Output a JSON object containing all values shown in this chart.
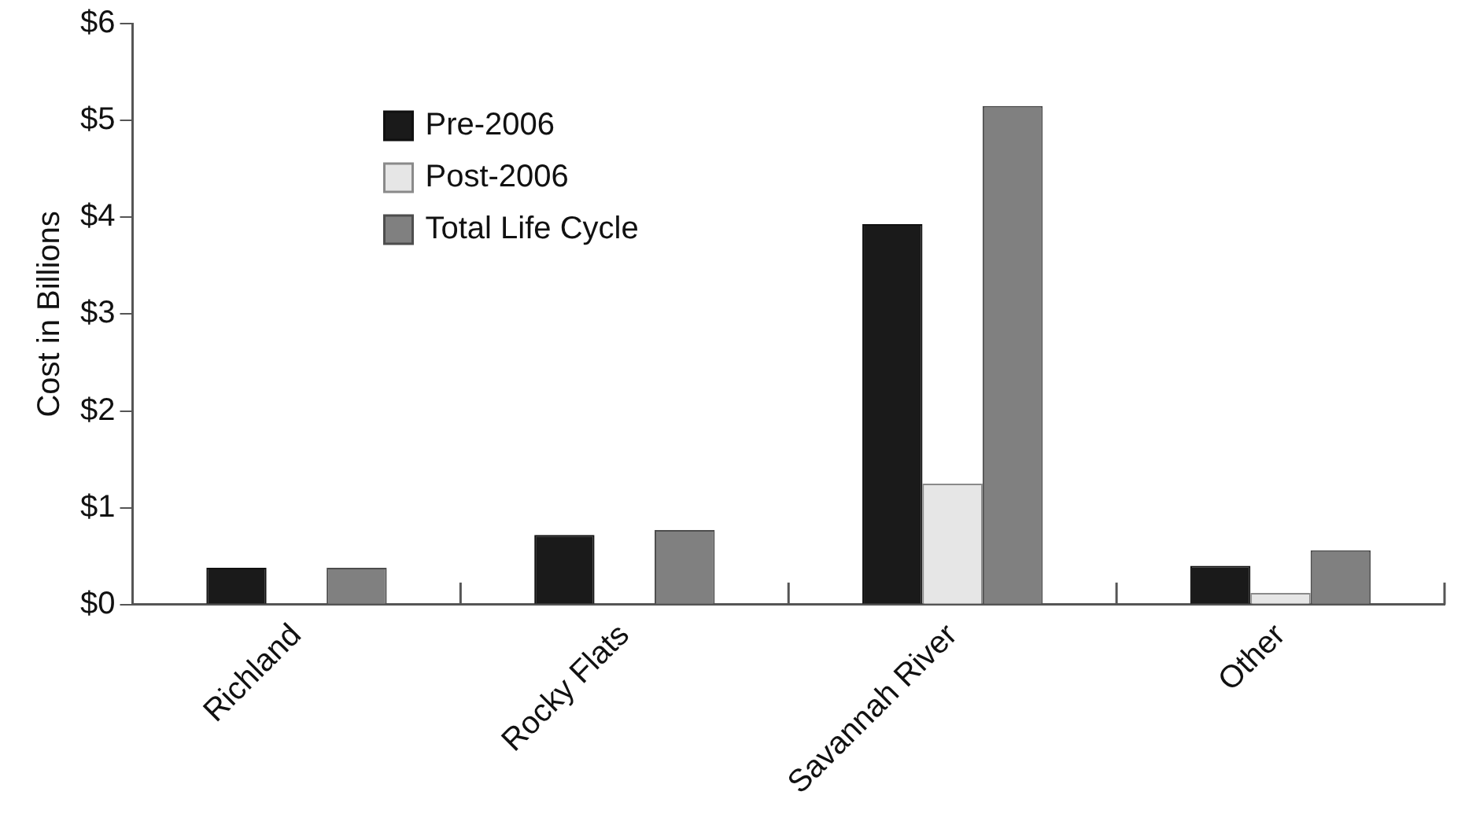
{
  "chart_data": {
    "type": "bar",
    "ylabel": "Cost in Billions",
    "categories": [
      "Richland",
      "Rocky Flats",
      "Savannah River",
      "Other"
    ],
    "series": [
      {
        "name": "Pre-2006",
        "color": "#1a1a1a",
        "values": [
          0.38,
          0.72,
          3.93,
          0.4
        ]
      },
      {
        "name": "Post-2006",
        "color": "#e6e6e6",
        "values": [
          null,
          null,
          1.25,
          0.12
        ]
      },
      {
        "name": "Total Life Cycle",
        "color": "#808080",
        "values": [
          0.38,
          0.77,
          5.15,
          0.56
        ]
      }
    ],
    "ylim": [
      0,
      6
    ],
    "yticks": [
      {
        "value": 0,
        "label": "$0"
      },
      {
        "value": 1,
        "label": "$1"
      },
      {
        "value": 2,
        "label": "$2"
      },
      {
        "value": 3,
        "label": "$3"
      },
      {
        "value": 4,
        "label": "$4"
      },
      {
        "value": 5,
        "label": "$5"
      },
      {
        "value": 6,
        "label": "$6"
      }
    ],
    "grid": false,
    "legend": "top left"
  }
}
